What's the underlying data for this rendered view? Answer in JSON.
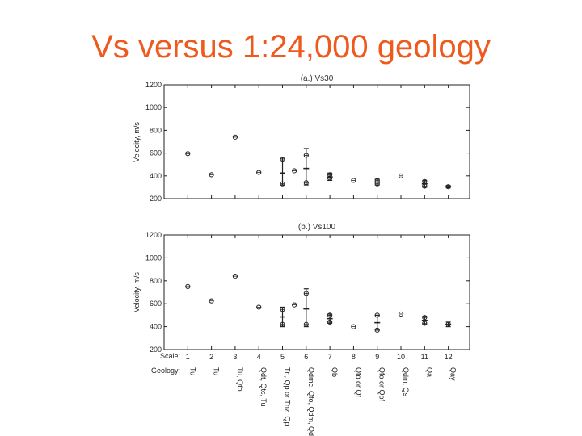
{
  "slide": {
    "title": "Vs versus 1:24,000 geology"
  },
  "colors": {
    "title": "#ee5a1d",
    "ink": "#222222"
  },
  "chart_data": [
    {
      "type": "scatter",
      "title": "(a.) Vs30",
      "ylabel": "Velocity, m/s",
      "ylim": [
        200,
        1200
      ],
      "yticks": [
        200,
        400,
        600,
        800,
        1000,
        1200
      ],
      "xlim": [
        0,
        12.9
      ],
      "x": [
        1,
        2,
        3,
        4,
        5,
        5.5,
        6,
        7,
        8,
        9,
        10,
        11,
        12
      ],
      "points": [
        {
          "x": 1,
          "y": 595
        },
        {
          "x": 2,
          "y": 410
        },
        {
          "x": 3,
          "y": 740
        },
        {
          "x": 4,
          "y": 430
        },
        {
          "x": 5,
          "y": 540
        },
        {
          "x": 5,
          "y": 330
        },
        {
          "x": 5.5,
          "y": 445
        },
        {
          "x": 6,
          "y": 580
        },
        {
          "x": 6,
          "y": 340
        },
        {
          "x": 7,
          "y": 410
        },
        {
          "x": 7,
          "y": 380
        },
        {
          "x": 8,
          "y": 360
        },
        {
          "x": 9,
          "y": 360
        },
        {
          "x": 9,
          "y": 330
        },
        {
          "x": 10,
          "y": 400
        },
        {
          "x": 11,
          "y": 350
        },
        {
          "x": 11,
          "y": 310
        },
        {
          "x": 12,
          "y": 305
        }
      ],
      "errorbars": [
        {
          "x": 5,
          "mean": 425,
          "low": 320,
          "high": 555
        },
        {
          "x": 6,
          "mean": 465,
          "low": 320,
          "high": 640
        },
        {
          "x": 7,
          "mean": 390,
          "low": 360,
          "high": 425
        },
        {
          "x": 9,
          "mean": 345,
          "low": 320,
          "high": 370
        },
        {
          "x": 11,
          "mean": 330,
          "low": 300,
          "high": 360
        },
        {
          "x": 12,
          "mean": 305,
          "low": 295,
          "high": 315
        }
      ],
      "grid": false
    },
    {
      "type": "scatter",
      "title": "(b.) Vs100",
      "ylabel": "Velocity, m/s",
      "ylim": [
        200,
        1200
      ],
      "yticks": [
        200,
        400,
        600,
        800,
        1000,
        1200
      ],
      "xlim": [
        0,
        12.9
      ],
      "x": [
        1,
        2,
        3,
        4,
        5,
        5.5,
        6,
        7,
        8,
        9,
        10,
        11,
        12
      ],
      "xticks": [
        "1",
        "2",
        "3",
        "4",
        "5",
        "6",
        "7",
        "8",
        "9",
        "10",
        "11",
        "12"
      ],
      "points": [
        {
          "x": 1,
          "y": 750
        },
        {
          "x": 2,
          "y": 625
        },
        {
          "x": 3,
          "y": 840
        },
        {
          "x": 4,
          "y": 570
        },
        {
          "x": 5,
          "y": 550
        },
        {
          "x": 5,
          "y": 420
        },
        {
          "x": 5.5,
          "y": 590
        },
        {
          "x": 6,
          "y": 690
        },
        {
          "x": 6,
          "y": 420
        },
        {
          "x": 7,
          "y": 500
        },
        {
          "x": 7,
          "y": 440
        },
        {
          "x": 8,
          "y": 400
        },
        {
          "x": 9,
          "y": 500
        },
        {
          "x": 9,
          "y": 370
        },
        {
          "x": 10,
          "y": 510
        },
        {
          "x": 11,
          "y": 480
        },
        {
          "x": 11,
          "y": 430
        },
        {
          "x": 12,
          "y": 420
        }
      ],
      "errorbars": [
        {
          "x": 5,
          "mean": 485,
          "low": 400,
          "high": 570
        },
        {
          "x": 6,
          "mean": 555,
          "low": 400,
          "high": 730
        },
        {
          "x": 7,
          "mean": 470,
          "low": 430,
          "high": 510
        },
        {
          "x": 9,
          "mean": 435,
          "low": 370,
          "high": 500
        },
        {
          "x": 11,
          "mean": 455,
          "low": 420,
          "high": 490
        },
        {
          "x": 12,
          "mean": 420,
          "low": 400,
          "high": 440
        }
      ],
      "row_labels": {
        "scale": "Scale:",
        "geology": "Geology:"
      },
      "geology": [
        "Tu",
        "Tu",
        "Tu, Qfo",
        "Qdt, Qtc, Tu",
        "Tn, Qp or Tnz, Qp",
        "Qdmc, Qfo, Qdm, Qds",
        "Qb",
        "Qfo or Qf",
        "Qfo or Qof",
        "Qdm, Qs",
        "Qa",
        "Qay"
      ],
      "grid": false
    }
  ]
}
